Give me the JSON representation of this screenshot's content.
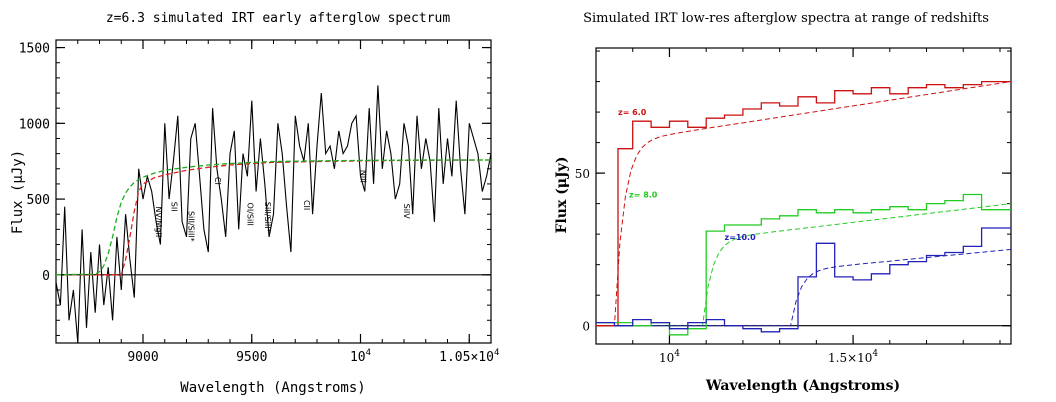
{
  "chart_data": [
    {
      "type": "line",
      "title": "z=6.3 simulated IRT early afterglow spectrum",
      "xlabel": "Wavelength (Angstroms)",
      "ylabel": "Flux (μJy)",
      "xlim": [
        8600,
        10600
      ],
      "ylim": [
        -450,
        1550
      ],
      "x_ticks": [
        {
          "v": 9000,
          "label": "9000"
        },
        {
          "v": 9500,
          "label": "9500"
        },
        {
          "v": 10000,
          "label": "10",
          "sup": "4"
        },
        {
          "v": 10500,
          "label": "1.05×10",
          "sup": "4"
        }
      ],
      "y_ticks": [
        {
          "v": 0,
          "label": "0"
        },
        {
          "v": 500,
          "label": "500"
        },
        {
          "v": 1000,
          "label": "1000"
        },
        {
          "v": 1500,
          "label": "1500"
        }
      ],
      "zero_line": true,
      "series": [
        {
          "style": "solid",
          "color": "#000000",
          "x": [
            8600,
            8620,
            8640,
            8660,
            8680,
            8700,
            8720,
            8740,
            8760,
            8780,
            8800,
            8820,
            8840,
            8860,
            8880,
            8900,
            8920,
            8940,
            8960,
            8980,
            9000,
            9020,
            9040,
            9060,
            9080,
            9100,
            9120,
            9140,
            9160,
            9180,
            9200,
            9220,
            9240,
            9260,
            9280,
            9300,
            9320,
            9340,
            9360,
            9380,
            9400,
            9420,
            9440,
            9460,
            9480,
            9500,
            9520,
            9540,
            9560,
            9580,
            9600,
            9620,
            9640,
            9660,
            9680,
            9700,
            9720,
            9740,
            9760,
            9780,
            9800,
            9820,
            9840,
            9860,
            9880,
            9900,
            9920,
            9940,
            9960,
            9980,
            10000,
            10020,
            10040,
            10060,
            10080,
            10100,
            10120,
            10140,
            10160,
            10180,
            10200,
            10220,
            10240,
            10260,
            10280,
            10300,
            10320,
            10340,
            10360,
            10380,
            10400,
            10420,
            10440,
            10460,
            10480,
            10500,
            10520,
            10540,
            10560,
            10580,
            10600
          ],
          "y": [
            -50,
            -200,
            450,
            -300,
            -100,
            -450,
            300,
            -350,
            150,
            -250,
            200,
            -200,
            50,
            -300,
            250,
            -100,
            400,
            100,
            -150,
            700,
            500,
            650,
            550,
            350,
            200,
            1000,
            500,
            750,
            1050,
            350,
            250,
            900,
            1000,
            650,
            300,
            150,
            1100,
            700,
            500,
            250,
            800,
            950,
            300,
            800,
            650,
            1150,
            550,
            900,
            600,
            250,
            400,
            1000,
            800,
            450,
            150,
            1050,
            850,
            750,
            1000,
            400,
            850,
            1200,
            800,
            850,
            700,
            950,
            800,
            850,
            1000,
            1050,
            650,
            550,
            1100,
            600,
            1250,
            700,
            950,
            800,
            500,
            600,
            1000,
            850,
            400,
            1050,
            700,
            900,
            750,
            350,
            1100,
            600,
            900,
            650,
            1150,
            700,
            400,
            1000,
            900,
            800,
            550,
            650,
            800
          ]
        },
        {
          "style": "dashed",
          "color": "#dd2222",
          "x": [
            8600,
            8900,
            8920,
            8940,
            8960,
            8980,
            9000,
            9050,
            9100,
            9200,
            9300,
            9400,
            9500,
            9600,
            9800,
            10000,
            10200,
            10400,
            10600
          ],
          "y": [
            0,
            0,
            100,
            250,
            420,
            550,
            600,
            640,
            660,
            690,
            710,
            725,
            735,
            742,
            748,
            752,
            755,
            757,
            758
          ]
        },
        {
          "style": "dashed",
          "color": "#22aa22",
          "x": [
            8600,
            8780,
            8800,
            8820,
            8840,
            8860,
            8880,
            8900,
            8920,
            8940,
            8960,
            8980,
            9000,
            9050,
            9100,
            9200,
            9300,
            9400,
            9500,
            9600,
            9800,
            10000,
            10200,
            10400,
            10600
          ],
          "y": [
            0,
            5,
            20,
            60,
            140,
            250,
            380,
            480,
            540,
            580,
            610,
            630,
            645,
            670,
            690,
            710,
            725,
            735,
            742,
            748,
            752,
            755,
            757,
            758,
            758
          ]
        }
      ],
      "annotations": [
        "NV/MgII",
        "SII",
        "SiII/SiII*",
        "CI",
        "OI/SiII",
        "SiII/SiII*",
        "CII",
        "NiII",
        "SiIV"
      ]
    },
    {
      "type": "line",
      "title": "Simulated IRT low-res afterglow spectra at range of redshifts",
      "xlabel": "Wavelength (Angstroms)",
      "ylabel": "Flux (μJy)",
      "xlim": [
        8000,
        19300
      ],
      "ylim": [
        -6,
        91
      ],
      "x_ticks": [
        {
          "v": 10000,
          "label": "10",
          "sup": "4"
        },
        {
          "v": 15000,
          "label": "1.5×10",
          "sup": "4"
        }
      ],
      "y_ticks": [
        {
          "v": 0,
          "label": "0"
        },
        {
          "v": 50,
          "label": "50"
        }
      ],
      "zero_line": true,
      "series": [
        {
          "name": "z= 6.0",
          "style": "step",
          "color": "#cc1111",
          "x": [
            8000,
            8400,
            8600,
            9000,
            9500,
            10000,
            10500,
            11000,
            11500,
            12000,
            12500,
            13000,
            13500,
            14000,
            14500,
            15000,
            15500,
            16000,
            16500,
            17000,
            17500,
            18000,
            18500,
            19300
          ],
          "y": [
            0,
            0,
            58,
            67,
            65,
            67,
            65,
            68,
            69,
            71,
            73,
            72,
            75,
            73,
            77,
            76,
            78,
            76,
            78,
            79,
            78,
            79,
            80,
            80
          ]
        },
        {
          "name": "z= 8.0",
          "style": "step",
          "color": "#22cc22",
          "x": [
            8000,
            9000,
            9500,
            10000,
            10500,
            11000,
            11500,
            12000,
            12500,
            13000,
            13500,
            14000,
            14500,
            15000,
            15500,
            16000,
            16500,
            17000,
            17500,
            18000,
            18500,
            19300
          ],
          "y": [
            1,
            0,
            1,
            -3,
            -1,
            31,
            33,
            33,
            35,
            36,
            38,
            37,
            38,
            37,
            38,
            39,
            38,
            40,
            41,
            43,
            38,
            38
          ]
        },
        {
          "name": "z=10.0",
          "style": "step",
          "color": "#2222bb",
          "x": [
            8000,
            8500,
            9000,
            9500,
            10000,
            10500,
            11000,
            11500,
            12000,
            12500,
            13000,
            13500,
            14000,
            14500,
            15000,
            15500,
            16000,
            16500,
            17000,
            17500,
            18000,
            18500,
            19300
          ],
          "y": [
            1,
            0,
            2,
            1,
            -1,
            1,
            2,
            0,
            -1,
            -2,
            -1,
            16,
            27,
            16,
            15,
            17,
            20,
            21,
            23,
            24,
            26,
            32,
            32
          ]
        }
      ],
      "model_curves": [
        {
          "color": "#cc1111",
          "break": 8500,
          "y0": 60,
          "y1": 80
        },
        {
          "color": "#22cc22",
          "break": 10900,
          "y0": 28,
          "y1": 40
        },
        {
          "color": "#2222bb",
          "break": 13300,
          "y0": 18,
          "y1": 25
        }
      ]
    }
  ]
}
